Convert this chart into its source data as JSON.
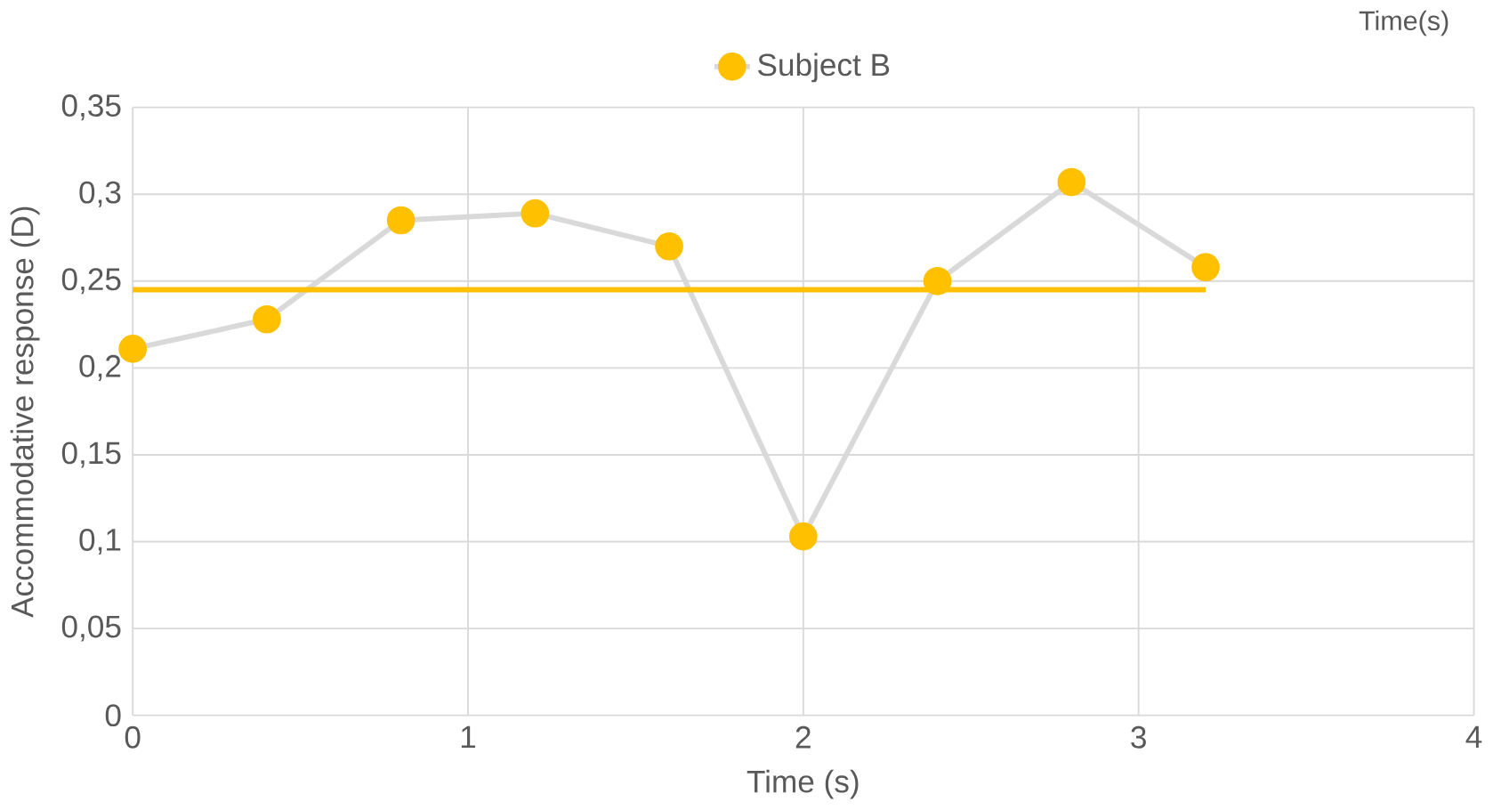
{
  "chart_data": {
    "type": "line",
    "xlabel": "Time (s)",
    "ylabel": "Accommodative response (D)",
    "annotations": [
      "Time(s)"
    ],
    "series": [
      {
        "name": "Subject B",
        "color": "#d9d9d9",
        "colors": [
          "#ffc000",
          "#ffc000",
          "#ffc000",
          "#ffc000",
          "#ffc000",
          "#ffc000",
          "#ffc000",
          "#ffc000",
          "#ffc000"
        ],
        "marker": "circle",
        "x": [
          0,
          0.4,
          0.8,
          1.2,
          1.6,
          2.0,
          2.4,
          2.8,
          3.2
        ],
        "values": [
          0.211,
          0.228,
          0.285,
          0.289,
          0.27,
          0.103,
          0.25,
          0.307,
          0.258
        ]
      },
      {
        "color": "#ffc000",
        "marker": "none",
        "x": [
          0,
          3.2
        ],
        "values": [
          0.245,
          0.245
        ]
      }
    ],
    "xlim": [
      0,
      4
    ],
    "xticks": [
      0,
      1,
      2,
      3,
      4
    ],
    "ylim": [
      0,
      0.35
    ],
    "yticks": [
      {
        "value": 0,
        "label": "0"
      },
      {
        "value": 0.05,
        "label": "0,05"
      },
      {
        "value": 0.1,
        "label": "0,1"
      },
      {
        "value": 0.15,
        "label": "0,15"
      },
      {
        "value": 0.2,
        "label": "0,2"
      },
      {
        "value": 0.25,
        "label": "0,25"
      },
      {
        "value": 0.3,
        "label": "0,3"
      },
      {
        "value": 0.35,
        "label": "0,35"
      }
    ],
    "grid": true,
    "legend": "top"
  }
}
